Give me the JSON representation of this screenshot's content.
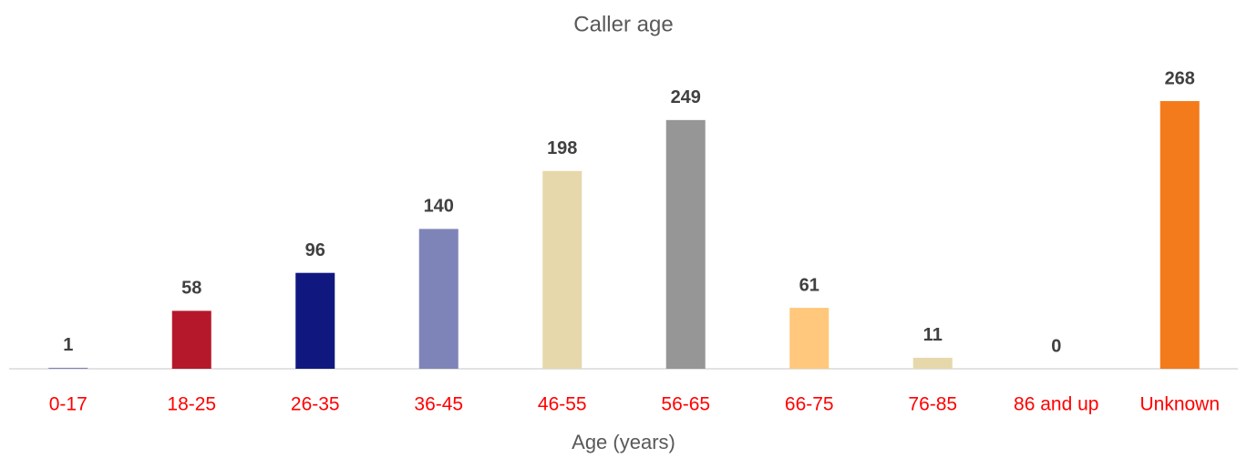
{
  "chart_data": {
    "type": "bar",
    "title": "Caller age",
    "x_label": "Age (years)",
    "categories": [
      "0-17",
      "18-25",
      "26-35",
      "36-45",
      "46-55",
      "56-65",
      "66-75",
      "76-85",
      "86 and up",
      "Unknown"
    ],
    "values": [
      1,
      58,
      96,
      140,
      198,
      249,
      61,
      11,
      0,
      268
    ],
    "colors": [
      "#7f84b8",
      "#b5182b",
      "#101880",
      "#7f84b8",
      "#e6d8aa",
      "#969696",
      "#ffc87c",
      "#e6d8aa",
      "#4d5fa8",
      "#f47b1b"
    ]
  }
}
